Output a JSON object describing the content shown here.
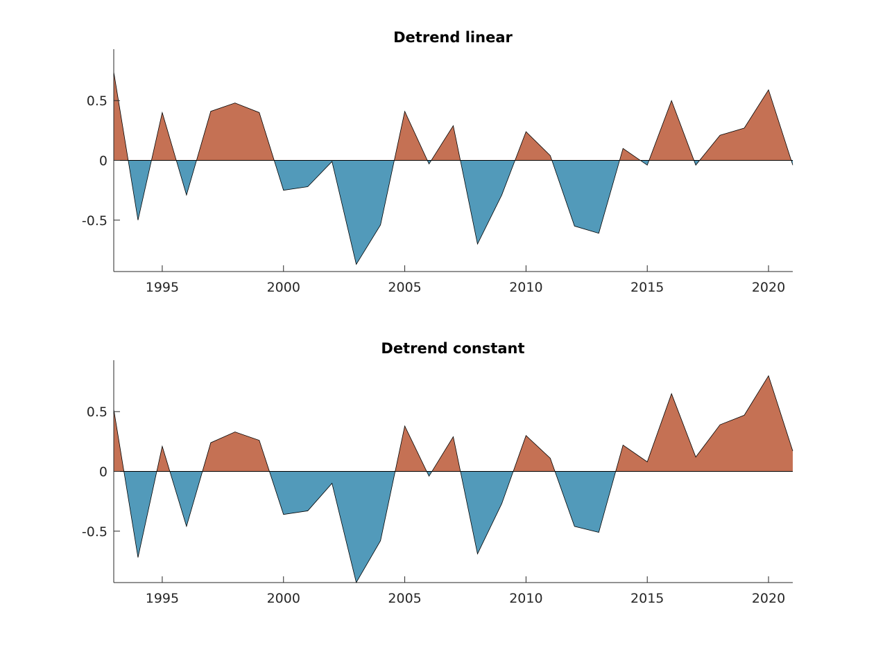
{
  "chart_data": [
    {
      "type": "area",
      "title": "Detrend linear",
      "x": [
        1993,
        1994,
        1995,
        1996,
        1997,
        1998,
        1999,
        2000,
        2001,
        2002,
        2003,
        2004,
        2005,
        2006,
        2007,
        2008,
        2009,
        2010,
        2011,
        2012,
        2013,
        2014,
        2015,
        2016,
        2017,
        2018,
        2019,
        2020,
        2021
      ],
      "values": [
        0.74,
        -0.5,
        0.4,
        -0.29,
        0.41,
        0.48,
        0.4,
        -0.25,
        -0.22,
        -0.01,
        -0.87,
        -0.54,
        0.41,
        -0.03,
        0.29,
        -0.7,
        -0.29,
        0.24,
        0.04,
        -0.55,
        -0.61,
        0.1,
        -0.04,
        0.5,
        -0.04,
        0.21,
        0.27,
        0.59,
        -0.04
      ],
      "xlim": [
        1993,
        2021
      ],
      "ylim": [
        -0.93,
        0.93
      ],
      "xticks": [
        "1995",
        "2000",
        "2005",
        "2010",
        "2015",
        "2020"
      ],
      "yticks": [
        "0.5",
        "0",
        "-0.5"
      ],
      "xlabel": "",
      "ylabel": "",
      "grid": false,
      "colors": {
        "positive": "#c57154",
        "negative": "#529aba",
        "outline": "#000000"
      }
    },
    {
      "type": "area",
      "title": "Detrend constant",
      "x": [
        1993,
        1994,
        1995,
        1996,
        1997,
        1998,
        1999,
        2000,
        2001,
        2002,
        2003,
        2004,
        2005,
        2006,
        2007,
        2008,
        2009,
        2010,
        2011,
        2012,
        2013,
        2014,
        2015,
        2016,
        2017,
        2018,
        2019,
        2020,
        2021
      ],
      "values": [
        0.52,
        -0.72,
        0.21,
        -0.46,
        0.24,
        0.33,
        0.26,
        -0.36,
        -0.33,
        -0.1,
        -0.93,
        -0.58,
        0.38,
        -0.04,
        0.29,
        -0.69,
        -0.27,
        0.3,
        0.11,
        -0.46,
        -0.51,
        0.22,
        0.08,
        0.65,
        0.12,
        0.39,
        0.47,
        0.8,
        0.17
      ],
      "xlim": [
        1993,
        2021
      ],
      "ylim": [
        -0.93,
        0.93
      ],
      "xticks": [
        "1995",
        "2000",
        "2005",
        "2010",
        "2015",
        "2020"
      ],
      "yticks": [
        "0.5",
        "0",
        "-0.5"
      ],
      "xlabel": "",
      "ylabel": "",
      "grid": false,
      "colors": {
        "positive": "#c57154",
        "negative": "#529aba",
        "outline": "#000000"
      }
    }
  ]
}
